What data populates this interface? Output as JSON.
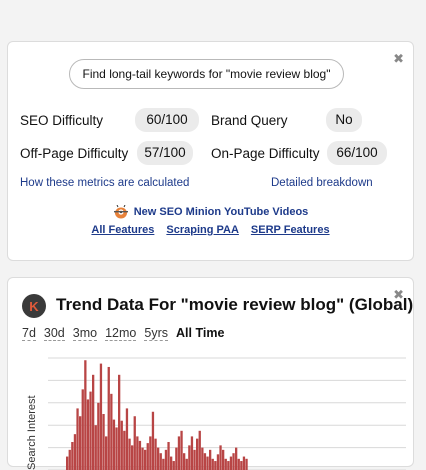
{
  "metrics_panel": {
    "close_label": "✖",
    "find_button": "Find long-tail keywords for \"movie review blog\"",
    "metrics": [
      {
        "label": "SEO Difficulty",
        "value": "60/100"
      },
      {
        "label": "Brand Query",
        "value": "No"
      },
      {
        "label": "Off-Page Difficulty",
        "value": "57/100"
      },
      {
        "label": "On-Page Difficulty",
        "value": "66/100"
      }
    ],
    "link_how": "How these metrics are calculated",
    "link_breakdown": "Detailed breakdown",
    "promo": "New SEO Minion YouTube Videos",
    "footer_links": [
      "All Features",
      "Scraping PAA",
      "SERP Features"
    ]
  },
  "trend_panel": {
    "close_label": "✖",
    "logo_letter": "K",
    "title": "Trend Data For \"movie review blog\" (Global)",
    "ranges": [
      "7d",
      "30d",
      "3mo",
      "12mo",
      "5yrs",
      "All Time"
    ],
    "active_range": "All Time",
    "y_axis_label": "Search Interest"
  },
  "colors": {
    "link": "#1d3a8a",
    "bar": "#b84545",
    "pill_bg": "#ebebeb"
  },
  "chart_data": {
    "type": "bar",
    "series": [
      {
        "values": [
          12,
          18,
          25,
          32,
          55,
          48,
          72,
          98,
          63,
          70,
          85,
          40,
          60,
          95,
          50,
          30,
          92,
          68,
          45,
          38,
          85,
          44,
          35,
          55,
          28,
          22,
          48,
          30,
          26,
          20,
          18,
          24,
          30,
          52,
          28,
          20,
          15,
          10,
          18,
          25,
          12,
          8,
          20,
          30,
          35,
          15,
          10,
          22,
          30,
          18,
          28,
          35,
          20,
          15,
          12,
          18,
          10,
          8,
          14,
          22,
          18,
          10,
          8,
          12,
          15,
          20,
          10,
          8,
          12,
          10
        ]
      }
    ],
    "ylim": [
      0,
      100
    ]
  }
}
